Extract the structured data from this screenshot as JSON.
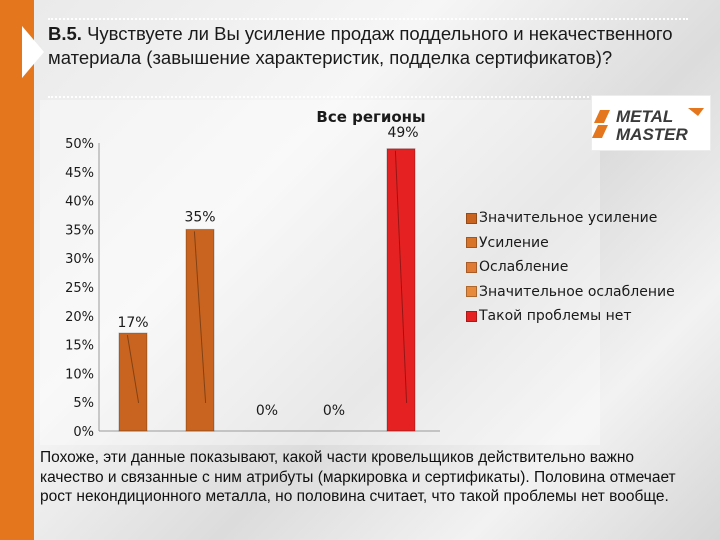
{
  "header": {
    "number": "В.5.",
    "question": "Чувствуете ли Вы усиление продаж поддельного и некачественного материала (завышение характеристик, подделка сертификатов)?"
  },
  "logo": {
    "line1": "METAL",
    "line2": "MASTER"
  },
  "colors": {
    "accent": "#e4771e",
    "bar_orange": "#c8641f",
    "bar_red": "#e62121"
  },
  "chart_data": {
    "type": "bar",
    "title": "Все регионы",
    "categories": [
      "Значительное усиление",
      "Усиление",
      "Ослабление",
      "Значительное ослабление",
      "Такой проблемы нет"
    ],
    "values": [
      17,
      35,
      0,
      0,
      49
    ],
    "value_labels": [
      "17%",
      "35%",
      "0%",
      "0%",
      "49%"
    ],
    "series_colors": [
      "#c8641f",
      "#c8641f",
      "#c8641f",
      "#c8641f",
      "#e62121"
    ],
    "yticks": [
      "0%",
      "5%",
      "10%",
      "15%",
      "20%",
      "25%",
      "30%",
      "35%",
      "40%",
      "45%",
      "50%"
    ],
    "ylim": [
      0,
      50
    ],
    "legend_position": "right",
    "grid": false
  },
  "legend": {
    "items": [
      {
        "label": "Значительное усиление",
        "color": "#c8641f"
      },
      {
        "label": "Усиление",
        "color": "#d8742a"
      },
      {
        "label": "Ослабление",
        "color": "#e07a33"
      },
      {
        "label": "Значительное ослабление",
        "color": "#e88a3c"
      },
      {
        "label": "Такой проблемы нет",
        "color": "#e62121"
      }
    ]
  },
  "footer": {
    "text": "Похоже, эти данные показывают, какой части кровельщиков действительно важно качество и связанные с ним атрибуты (маркировка и сертификаты). Половина отмечает рост некондиционного металла, но половина считает, что такой проблемы нет вообще."
  }
}
